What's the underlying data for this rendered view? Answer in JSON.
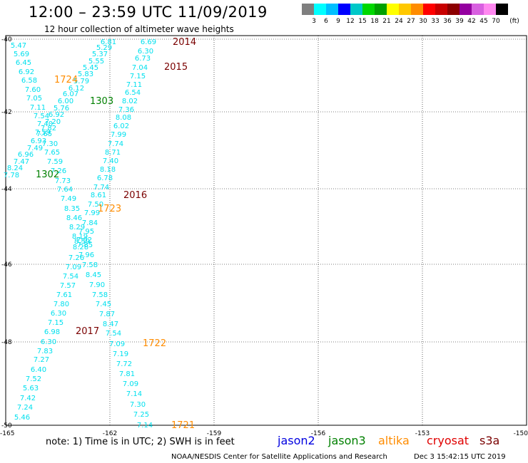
{
  "title": "12:00 – 23:59 UTC 11/09/2019",
  "subtitle": "12 hour collection of altimeter wave heights",
  "legend": {
    "unit": "(ft)",
    "colors": [
      "#7f7f7f",
      "#00ffff",
      "#00bfff",
      "#0000ff",
      "#00c8c8",
      "#00d800",
      "#00a000",
      "#ffff00",
      "#ffc800",
      "#ff8c00",
      "#ff0000",
      "#c80000",
      "#8c0000",
      "#9400a0",
      "#d860e0",
      "#ff88f0",
      "#000000"
    ],
    "labels": [
      "3",
      "6",
      "9",
      "12",
      "15",
      "18",
      "21",
      "24",
      "27",
      "30",
      "33",
      "36",
      "39",
      "42",
      "45",
      "70"
    ]
  },
  "map": {
    "lat_labels": [
      "-40",
      "-42",
      "-44",
      "-46",
      "-48",
      "-50"
    ],
    "lon_labels": [
      "-165",
      "-162",
      "-159",
      "-156",
      "-153",
      "-150"
    ],
    "track_color": "#00e0ee",
    "tracks": [
      {
        "name": "track-2014",
        "points": [
          [
            "6.81",
            152,
            58
          ],
          [
            "5.29",
            146,
            66
          ],
          [
            "5.37",
            140,
            75
          ],
          [
            "5.55",
            135,
            85
          ],
          [
            "5.45",
            127,
            94
          ],
          [
            "5.83",
            120,
            103
          ],
          [
            "5.79",
            114,
            113
          ],
          [
            "6.12",
            107,
            123
          ],
          [
            "6.07",
            99,
            131
          ],
          [
            "6.00",
            92,
            141
          ],
          [
            "5.76",
            86,
            151
          ],
          [
            "6.92",
            79,
            160
          ],
          [
            "7.20",
            74,
            170
          ],
          [
            "7.82",
            68,
            179
          ],
          [
            "7.65",
            62,
            187
          ],
          [
            "6.93",
            54,
            197
          ],
          [
            "7.49",
            49,
            207
          ],
          [
            "6.96",
            36,
            216
          ],
          [
            "7.47",
            30,
            226
          ],
          [
            "8.24",
            21,
            235
          ],
          [
            "7.78",
            16,
            245
          ]
        ]
      },
      {
        "name": "track-1724",
        "points": [
          [
            "5.47",
            26,
            63
          ],
          [
            "5.69",
            30,
            75
          ],
          [
            "6.45",
            33,
            87
          ],
          [
            "6.92",
            37,
            100
          ],
          [
            "6.58",
            41,
            112
          ],
          [
            "7.60",
            46,
            125
          ],
          [
            "7.05",
            48,
            137
          ],
          [
            "7.11",
            53,
            150
          ],
          [
            "7.54",
            58,
            162
          ],
          [
            "7.40",
            63,
            173
          ],
          [
            "7.59",
            60,
            185
          ],
          [
            "7.30",
            70,
            201
          ],
          [
            "7.65",
            73,
            213
          ],
          [
            "7.59",
            77,
            226
          ],
          [
            "7.26",
            82,
            239
          ],
          [
            "7.73",
            88,
            253
          ],
          [
            "7.64",
            91,
            265
          ],
          [
            "7.49",
            96,
            278
          ],
          [
            "8.35",
            101,
            292
          ],
          [
            "8.46",
            104,
            305
          ],
          [
            "8.29",
            108,
            318
          ],
          [
            "8.19",
            112,
            331
          ],
          [
            "8.59",
            115,
            338
          ],
          [
            "8.28",
            113,
            346
          ],
          [
            "7.26",
            107,
            361
          ],
          [
            "7.09",
            103,
            374
          ],
          [
            "7.54",
            99,
            387
          ],
          [
            "7.57",
            95,
            400
          ],
          [
            "7.61",
            90,
            413
          ],
          [
            "7.80",
            86,
            426
          ],
          [
            "6.30",
            82,
            439
          ],
          [
            "7.15",
            78,
            452
          ],
          [
            "6.98",
            73,
            465
          ],
          [
            "6.30",
            68,
            479
          ],
          [
            "7.83",
            63,
            492
          ],
          [
            "7.27",
            58,
            504
          ],
          [
            "6.40",
            54,
            518
          ],
          [
            "7.52",
            47,
            531
          ],
          [
            "5.63",
            43,
            544
          ],
          [
            "7.42",
            39,
            558
          ],
          [
            "7.24",
            35,
            571
          ],
          [
            "5.46",
            31,
            585
          ]
        ]
      },
      {
        "name": "track-2015",
        "points": [
          [
            "6.69",
            208,
            58
          ],
          [
            "6.30",
            204,
            71
          ],
          [
            "6.73",
            200,
            81
          ],
          [
            "7.04",
            196,
            94
          ],
          [
            "7.15",
            193,
            106
          ],
          [
            "7.11",
            188,
            118
          ],
          [
            "6.54",
            186,
            129
          ],
          [
            "8.02",
            182,
            141
          ],
          [
            "7.36",
            177,
            153
          ],
          [
            "8.08",
            173,
            164
          ],
          [
            "6.02",
            170,
            176
          ],
          [
            "7.99",
            166,
            188
          ],
          [
            "7.74",
            162,
            201
          ],
          [
            "8.71",
            158,
            213
          ],
          [
            "7.40",
            155,
            225
          ],
          [
            "8.18",
            151,
            237
          ],
          [
            "6.78",
            147,
            249
          ],
          [
            "7.74",
            142,
            262
          ],
          [
            "8.61",
            138,
            273
          ],
          [
            "7.50",
            134,
            286
          ],
          [
            "7.99",
            129,
            298
          ],
          [
            "7.84",
            126,
            312
          ],
          [
            "7.95",
            121,
            324
          ],
          [
            "7.92",
            118,
            336
          ],
          [
            "7.85",
            119,
            343
          ],
          [
            "7.96",
            121,
            357
          ],
          [
            "7.58",
            126,
            371
          ],
          [
            "8.45",
            131,
            385
          ],
          [
            "7.90",
            136,
            399
          ],
          [
            "7.58",
            140,
            413
          ],
          [
            "7.45",
            145,
            426
          ],
          [
            "7.87",
            150,
            440
          ],
          [
            "8.47",
            155,
            454
          ],
          [
            "7.54",
            159,
            467
          ],
          [
            "7.09",
            164,
            482
          ],
          [
            "7.19",
            169,
            496
          ],
          [
            "7.72",
            174,
            510
          ],
          [
            "7.81",
            178,
            524
          ],
          [
            "7.09",
            183,
            538
          ],
          [
            "7.14",
            188,
            552
          ],
          [
            "7.30",
            193,
            567
          ],
          [
            "7.25",
            198,
            581
          ],
          [
            "7.14",
            203,
            596
          ]
        ]
      }
    ],
    "pass_labels": [
      {
        "text": "2014",
        "color": "#7a0000",
        "x": 242,
        "y": 58
      },
      {
        "text": "2015",
        "color": "#7a0000",
        "x": 230,
        "y": 93
      },
      {
        "text": "1724",
        "color": "#ff8c00",
        "x": 76,
        "y": 111
      },
      {
        "text": "1303",
        "color": "#008000",
        "x": 126,
        "y": 141
      },
      {
        "text": "1302",
        "color": "#008000",
        "x": 50,
        "y": 244
      },
      {
        "text": "2016",
        "color": "#7a0000",
        "x": 173,
        "y": 273
      },
      {
        "text": "1723",
        "color": "#ff8c00",
        "x": 137,
        "y": 292
      },
      {
        "text": "2017",
        "color": "#7a0000",
        "x": 106,
        "y": 464
      },
      {
        "text": "1722",
        "color": "#ff8c00",
        "x": 200,
        "y": 481
      },
      {
        "text": "1721",
        "color": "#ff8c00",
        "x": 240,
        "y": 596
      }
    ]
  },
  "footer": {
    "note": "note:  1) Time is in UTC;  2) SWH is in feet",
    "missions": [
      {
        "name": "jason2",
        "color": "#0000e0"
      },
      {
        "name": "jason3",
        "color": "#008000"
      },
      {
        "name": "altika",
        "color": "#ff8c00"
      },
      {
        "name": "cryosat",
        "color": "#e00000"
      },
      {
        "name": "s3a",
        "color": "#7a0000"
      }
    ],
    "credit": "NOAA/NESDIS Center for Satellite Applications and Research",
    "timestamp": "Dec  3 15:42:15 UTC 2019"
  }
}
